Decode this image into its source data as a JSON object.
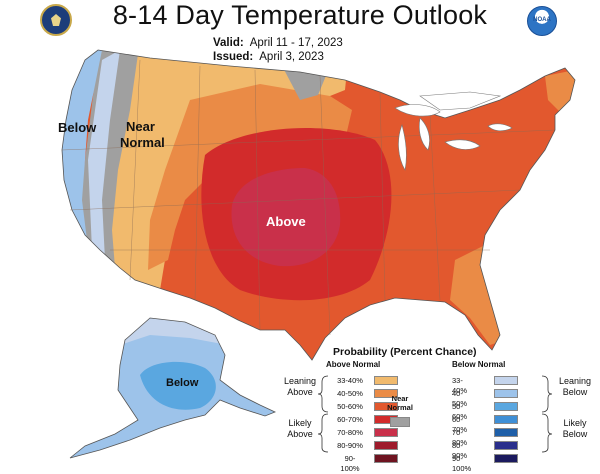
{
  "header": {
    "title": "8-14 Day Temperature Outlook",
    "valid_label": "Valid:",
    "valid_value": "April 11 - 17, 2023",
    "issued_label": "Issued:",
    "issued_value": "April 3, 2023",
    "agency_logo_text": "NOAA"
  },
  "map": {
    "labels": {
      "below_west": "Below",
      "near_normal_line1": "Near",
      "near_normal_line2": "Normal",
      "above_center": "Above",
      "below_alaska": "Below"
    },
    "colors": {
      "below_33_40": "#c4d4ec",
      "below_40_50": "#9dc3ea",
      "below_50_60": "#5aa7e0",
      "near_normal": "#a0a0a0",
      "above_33_40": "#f1ba6d",
      "above_40_50": "#ea8b46",
      "above_50_60": "#e2582e",
      "above_60_70": "#d22b2b",
      "above_70_80": "#c9304a",
      "lakes": "#ffffff",
      "borders": "#777777"
    }
  },
  "legend": {
    "title": "Probability (Percent Chance)",
    "above_header": "Above Normal",
    "below_header": "Below Normal",
    "leaning_above_1": "Leaning",
    "leaning_above_2": "Above",
    "likely_above_1": "Likely",
    "likely_above_2": "Above",
    "leaning_below_1": "Leaning",
    "leaning_below_2": "Below",
    "likely_below_1": "Likely",
    "likely_below_2": "Below",
    "near_label_1": "Near",
    "near_label_2": "Normal",
    "above_rows": [
      {
        "label": "33-40%",
        "color": "#f1ba6d"
      },
      {
        "label": "40-50%",
        "color": "#ea8b46"
      },
      {
        "label": "50-60%",
        "color": "#e2582e"
      },
      {
        "label": "60-70%",
        "color": "#d22b2b"
      },
      {
        "label": "70-80%",
        "color": "#c9304a"
      },
      {
        "label": "80-90%",
        "color": "#9e1b2c"
      },
      {
        "label": "90-100%",
        "color": "#6e1320"
      }
    ],
    "below_rows": [
      {
        "label": "33-40%",
        "color": "#c4d4ec"
      },
      {
        "label": "40-50%",
        "color": "#9dc3ea"
      },
      {
        "label": "50-60%",
        "color": "#5aa7e0"
      },
      {
        "label": "60-70%",
        "color": "#3f8fd6"
      },
      {
        "label": "70-80%",
        "color": "#1f5fa8"
      },
      {
        "label": "80-90%",
        "color": "#2a2f8c"
      },
      {
        "label": "90-100%",
        "color": "#1b1a5e"
      }
    ],
    "near_color": "#a0a0a0"
  }
}
